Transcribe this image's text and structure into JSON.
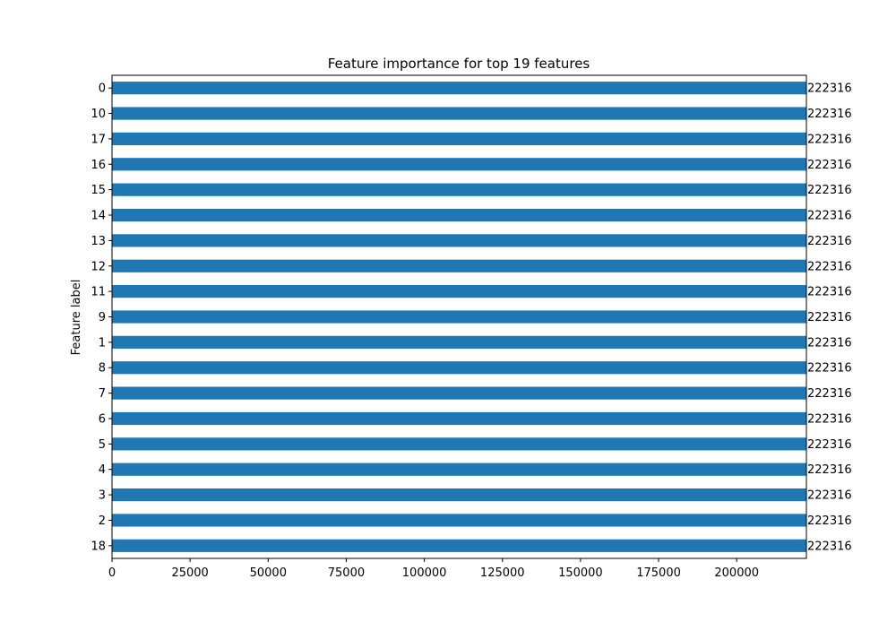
{
  "chart_data": {
    "type": "bar",
    "orientation": "horizontal",
    "title": "Feature importance for top 19 features",
    "xlabel": "",
    "ylabel": "Feature label",
    "categories": [
      "0",
      "10",
      "17",
      "16",
      "15",
      "14",
      "13",
      "12",
      "11",
      "9",
      "1",
      "8",
      "7",
      "6",
      "5",
      "4",
      "3",
      "2",
      "18"
    ],
    "values": [
      222316,
      222316,
      222316,
      222316,
      222316,
      222316,
      222316,
      222316,
      222316,
      222316,
      222316,
      222316,
      222316,
      222316,
      222316,
      222316,
      222316,
      222316,
      222316
    ],
    "data_labels": [
      "222316",
      "222316",
      "222316",
      "222316",
      "222316",
      "222316",
      "222316",
      "222316",
      "222316",
      "222316",
      "222316",
      "222316",
      "222316",
      "222316",
      "222316",
      "222316",
      "222316",
      "222316",
      "222316"
    ],
    "xticks": [
      0,
      25000,
      50000,
      75000,
      100000,
      125000,
      150000,
      175000,
      200000
    ],
    "xlim": [
      0,
      222316
    ],
    "grid": false,
    "bar_color": "#1f77b4"
  }
}
